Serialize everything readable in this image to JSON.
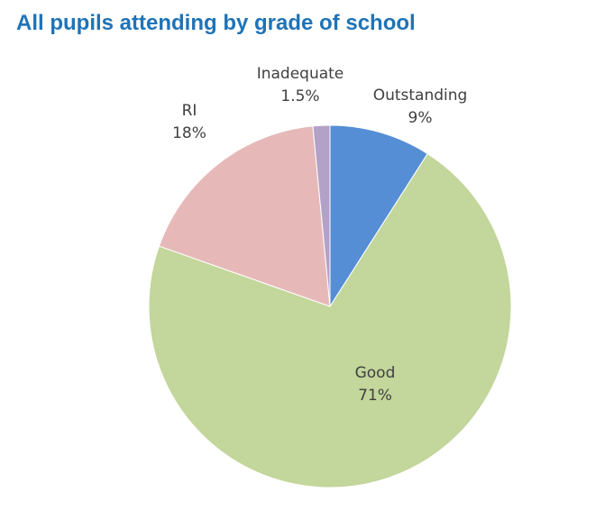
{
  "chart_data": {
    "type": "pie",
    "title": "All pupils attending by grade of school",
    "slices": [
      {
        "label": "Outstanding",
        "value": 9,
        "value_label": "9%",
        "color": "#558ed5"
      },
      {
        "label": "Good",
        "value": 71,
        "value_label": "71%",
        "color": "#c3d69b"
      },
      {
        "label": "RI",
        "value": 18,
        "value_label": "18%",
        "color": "#e6b9b8"
      },
      {
        "label": "Inadequate",
        "value": 1.5,
        "value_label": "1.5%",
        "color": "#b3a2c7"
      }
    ],
    "start": "top",
    "direction": "clockwise",
    "legend": "none"
  }
}
